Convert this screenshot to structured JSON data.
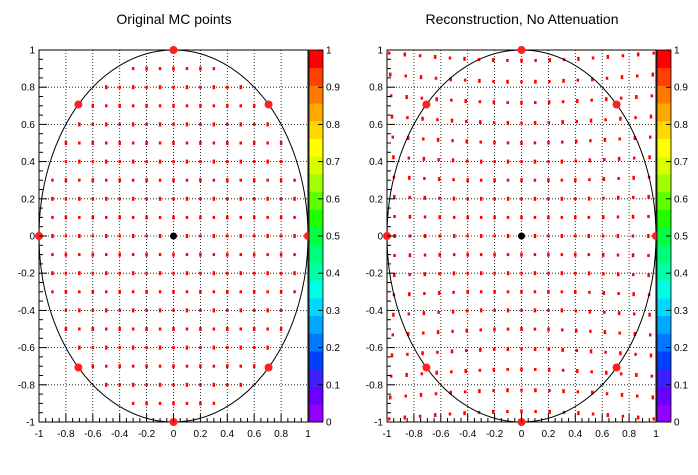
{
  "chart_data": [
    {
      "type": "heatmap",
      "title": "Original MC points",
      "xlabel": "",
      "ylabel": "",
      "xlim": [
        -1,
        1
      ],
      "ylim": [
        -1,
        1
      ],
      "x_ticks": [
        "-1",
        "-0.8",
        "-0.6",
        "-0.4",
        "-0.2",
        "0",
        "0.2",
        "0.4",
        "0.6",
        "0.8",
        "1"
      ],
      "y_ticks": [
        "-1",
        "-0.8",
        "-0.6",
        "-0.4",
        "-0.2",
        "0",
        "0.2",
        "0.4",
        "0.6",
        "0.8",
        "1"
      ],
      "grid": true,
      "grid_spacing": 0.2,
      "point_spacing": 0.1,
      "point_region": "unit circle",
      "point_color": "#ff0000",
      "circle": {
        "center": [
          0,
          0
        ],
        "radius": 1
      },
      "center_marker": {
        "x": 0,
        "y": 0,
        "color": "#000000"
      },
      "boundary_markers": {
        "color": "#ff2020",
        "points": [
          [
            1,
            0
          ],
          [
            0.707,
            0.707
          ],
          [
            0,
            1
          ],
          [
            -0.707,
            0.707
          ],
          [
            -1,
            0
          ],
          [
            -0.707,
            -0.707
          ],
          [
            0,
            -1
          ],
          [
            0.707,
            -0.707
          ]
        ]
      },
      "colorbar": {
        "min": 0,
        "max": 1,
        "labels": [
          "0",
          "0.1",
          "0.2",
          "0.3",
          "0.4",
          "0.5",
          "0.6",
          "0.7",
          "0.8",
          "0.9",
          "1"
        ],
        "colors": [
          "#9400ff",
          "#6a00ff",
          "#3c20ff",
          "#0040ff",
          "#0078ff",
          "#00a8ff",
          "#00d8ff",
          "#00ffe0",
          "#00ffa8",
          "#00ff78",
          "#00ff40",
          "#20ff00",
          "#60ff00",
          "#a0ff00",
          "#d8ff00",
          "#ffff00",
          "#ffd800",
          "#ffa800",
          "#ff7800",
          "#ff4000",
          "#ff0000"
        ]
      }
    },
    {
      "type": "heatmap",
      "title": "Reconstruction, No Attenuation",
      "xlabel": "",
      "ylabel": "",
      "xlim": [
        -1,
        1
      ],
      "ylim": [
        -1,
        1
      ],
      "x_ticks": [
        "-1",
        "-0.8",
        "-0.6",
        "-0.4",
        "-0.2",
        "0",
        "0.2",
        "0.4",
        "0.6",
        "0.8",
        "1"
      ],
      "y_ticks": [
        "-1",
        "-0.8",
        "-0.6",
        "-0.4",
        "-0.2",
        "0",
        "0.2",
        "0.4",
        "0.6",
        "0.8",
        "1"
      ],
      "grid": true,
      "grid_spacing": 0.2,
      "point_spacing": 0.1,
      "point_region": "unit circle, stretched outward near boundary",
      "point_color": "#ff0000",
      "circle": {
        "center": [
          0,
          0
        ],
        "radius": 1
      },
      "center_marker": {
        "x": 0,
        "y": 0,
        "color": "#000000"
      },
      "boundary_markers": {
        "color": "#ff2020",
        "points": [
          [
            1,
            0
          ],
          [
            0.707,
            0.707
          ],
          [
            0,
            1
          ],
          [
            -0.707,
            0.707
          ],
          [
            -1,
            0
          ],
          [
            -0.707,
            -0.707
          ],
          [
            0,
            -1
          ],
          [
            0.707,
            -0.707
          ]
        ]
      },
      "colorbar": {
        "min": 0,
        "max": 1,
        "labels": [
          "0",
          "0.1",
          "0.2",
          "0.3",
          "0.4",
          "0.5",
          "0.6",
          "0.7",
          "0.8",
          "0.9",
          "1"
        ],
        "colors": [
          "#9400ff",
          "#6a00ff",
          "#3c20ff",
          "#0040ff",
          "#0078ff",
          "#00a8ff",
          "#00d8ff",
          "#00ffe0",
          "#00ffa8",
          "#00ff78",
          "#00ff40",
          "#20ff00",
          "#60ff00",
          "#a0ff00",
          "#d8ff00",
          "#ffff00",
          "#ffd800",
          "#ffa800",
          "#ff7800",
          "#ff4000",
          "#ff0000"
        ]
      }
    }
  ]
}
